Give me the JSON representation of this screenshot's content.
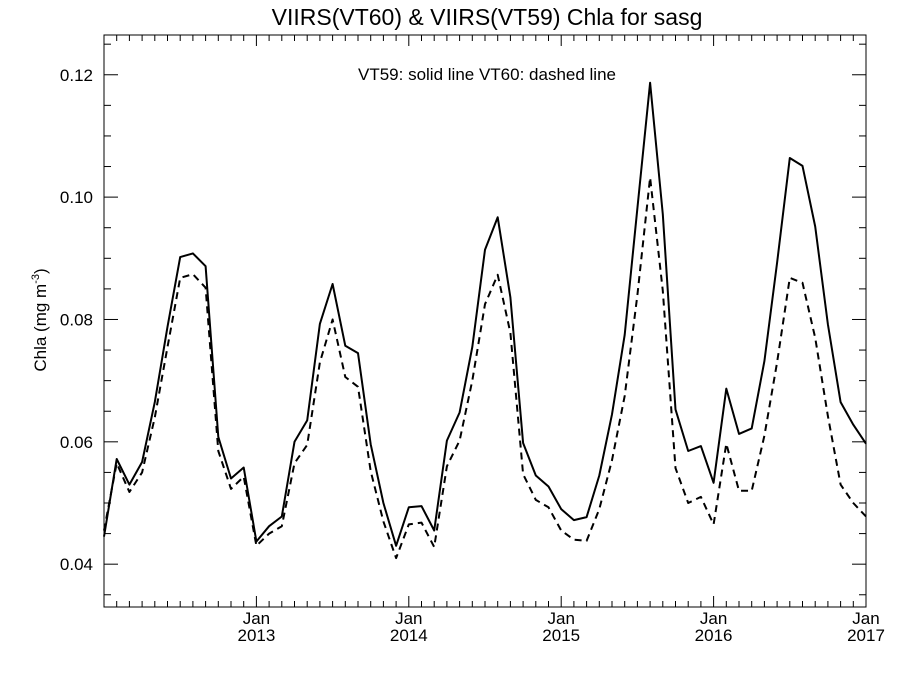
{
  "chart_data": {
    "type": "line",
    "title": "VIIRS(VT60) & VIIRS(VT59)  Chla for sasg",
    "annotation": "VT59: solid line   VT60: dashed line",
    "ylabel": "Chla (mg m",
    "ylabel_sup": "-3",
    "ylabel_close": ")",
    "xlim": [
      "2012-01",
      "2017-01"
    ],
    "ylim": [
      0.033,
      0.1265
    ],
    "yticks": [
      0.04,
      0.06,
      0.08,
      0.1,
      0.12
    ],
    "ytick_labels": [
      "0.04",
      "0.06",
      "0.08",
      "0.10",
      "0.12"
    ],
    "xticks": [
      {
        "value": "2013-01",
        "month": "Jan",
        "year": "2013"
      },
      {
        "value": "2014-01",
        "month": "Jan",
        "year": "2014"
      },
      {
        "value": "2015-01",
        "month": "Jan",
        "year": "2015"
      },
      {
        "value": "2016-01",
        "month": "Jan",
        "year": "2016"
      },
      {
        "value": "2017-01",
        "month": "Jan",
        "year": "2017"
      }
    ],
    "minor_ticks": "monthly",
    "grid": false,
    "x": [
      "2012-01",
      "2012-02",
      "2012-03",
      "2012-04",
      "2012-05",
      "2012-06",
      "2012-07",
      "2012-08",
      "2012-09",
      "2012-10",
      "2012-11",
      "2012-12",
      "2013-01",
      "2013-02",
      "2013-03",
      "2013-04",
      "2013-05",
      "2013-06",
      "2013-07",
      "2013-08",
      "2013-09",
      "2013-10",
      "2013-11",
      "2013-12",
      "2014-01",
      "2014-02",
      "2014-03",
      "2014-04",
      "2014-05",
      "2014-06",
      "2014-07",
      "2014-08",
      "2014-09",
      "2014-10",
      "2014-11",
      "2014-12",
      "2015-01",
      "2015-02",
      "2015-03",
      "2015-04",
      "2015-05",
      "2015-06",
      "2015-07",
      "2015-08",
      "2015-09",
      "2015-10",
      "2015-11",
      "2015-12",
      "2016-01",
      "2016-02",
      "2016-03",
      "2016-04",
      "2016-05",
      "2016-06",
      "2016-07",
      "2016-08",
      "2016-09",
      "2016-10",
      "2016-11",
      "2016-12",
      "2017-01"
    ],
    "series": [
      {
        "name": "VT59",
        "style": "solid",
        "color": "#000000",
        "values": [
          0.0445,
          0.0572,
          0.053,
          0.0567,
          0.0665,
          0.0788,
          0.0902,
          0.0908,
          0.0887,
          0.0608,
          0.054,
          0.0558,
          0.0437,
          0.0462,
          0.0478,
          0.06,
          0.0635,
          0.0793,
          0.0858,
          0.0757,
          0.0745,
          0.0596,
          0.05,
          0.043,
          0.0493,
          0.0495,
          0.0455,
          0.0602,
          0.0648,
          0.0755,
          0.0914,
          0.0967,
          0.0836,
          0.0598,
          0.0545,
          0.0527,
          0.049,
          0.0472,
          0.0477,
          0.0545,
          0.0645,
          0.0775,
          0.0982,
          0.1187,
          0.0972,
          0.0653,
          0.0585,
          0.0593,
          0.0533,
          0.0687,
          0.0613,
          0.0622,
          0.0732,
          0.0893,
          0.1064,
          0.1051,
          0.0952,
          0.0792,
          0.0665,
          0.0628,
          0.0597
        ]
      },
      {
        "name": "VT60",
        "style": "dashed",
        "color": "#000000",
        "values": [
          0.0455,
          0.0565,
          0.0518,
          0.055,
          0.064,
          0.0755,
          0.0868,
          0.0874,
          0.0852,
          0.0585,
          0.0523,
          0.0543,
          0.043,
          0.045,
          0.0462,
          0.0565,
          0.0595,
          0.073,
          0.08,
          0.0706,
          0.069,
          0.0552,
          0.047,
          0.041,
          0.0465,
          0.0468,
          0.0428,
          0.056,
          0.0602,
          0.07,
          0.0825,
          0.0873,
          0.0778,
          0.0547,
          0.0505,
          0.0493,
          0.0455,
          0.044,
          0.0438,
          0.049,
          0.057,
          0.0675,
          0.084,
          0.1032,
          0.0847,
          0.0557,
          0.05,
          0.051,
          0.0465,
          0.0597,
          0.052,
          0.052,
          0.061,
          0.073,
          0.0868,
          0.086,
          0.077,
          0.0642,
          0.053,
          0.05,
          0.0478
        ]
      }
    ]
  }
}
